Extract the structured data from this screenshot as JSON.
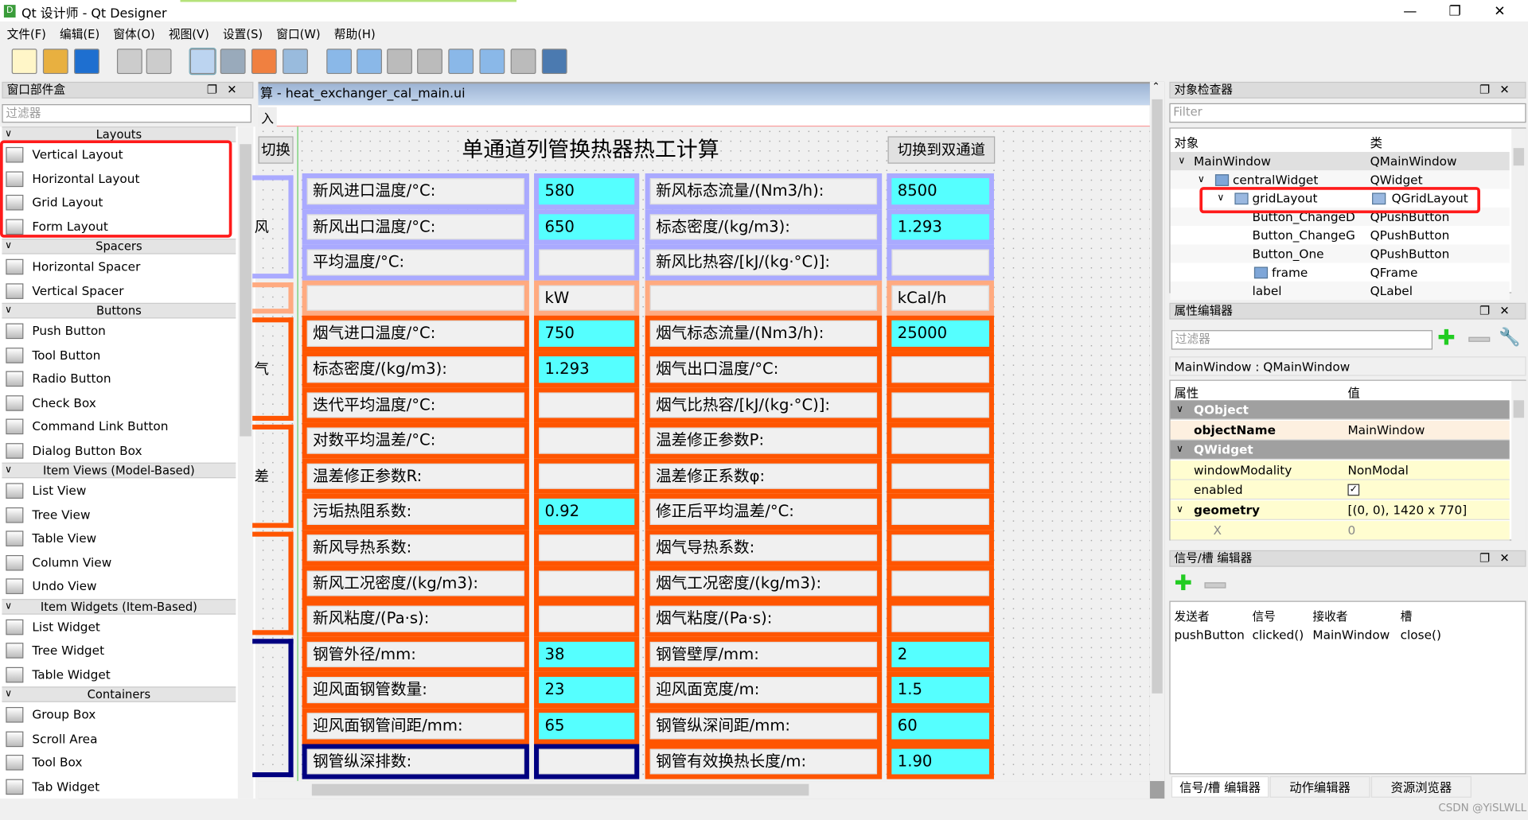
{
  "window": {
    "title": "Qt 设计师 - Qt Designer",
    "app_icon": "D",
    "controls": [
      "—",
      "❐",
      "✕"
    ]
  },
  "menu": [
    "文件(F)",
    "编辑(E)",
    "窗体(O)",
    "视图(V)",
    "设置(S)",
    "窗口(W)",
    "帮助(H)"
  ],
  "toolbar": [
    "new-file-icon",
    "open-folder-icon",
    "save-icon",
    "send-to-back-icon",
    "bring-to-front-icon",
    "edit-widgets-icon",
    "edit-signals-slots-icon",
    "edit-buddies-icon",
    "edit-tab-order-icon",
    "layout-horizontal-icon",
    "layout-vertical-icon",
    "layout-h-splitter-icon",
    "layout-v-splitter-icon",
    "layout-grid-icon",
    "layout-form-icon",
    "break-layout-icon",
    "adjust-size-icon"
  ],
  "widget_box": {
    "title": "窗口部件盒",
    "filter_placeholder": "过滤器",
    "sections": [
      {
        "label": "Layouts",
        "items": [
          "Vertical Layout",
          "Horizontal Layout",
          "Grid Layout",
          "Form Layout"
        ]
      },
      {
        "label": "Spacers",
        "items": [
          "Horizontal Spacer",
          "Vertical Spacer"
        ]
      },
      {
        "label": "Buttons",
        "items": [
          "Push Button",
          "Tool Button",
          "Radio Button",
          "Check Box",
          "Command Link Button",
          "Dialog Button Box"
        ]
      },
      {
        "label": "Item Views (Model-Based)",
        "items": [
          "List View",
          "Tree View",
          "Table View",
          "Column View",
          "Undo View"
        ]
      },
      {
        "label": "Item Widgets (Item-Based)",
        "items": [
          "List Widget",
          "Tree Widget",
          "Table Widget"
        ]
      },
      {
        "label": "Containers",
        "items": [
          "Group Box",
          "Scroll Area",
          "Tool Box",
          "Tab Widget"
        ]
      }
    ]
  },
  "form_window": {
    "title": "算 - heat_exchanger_cal_main.ui",
    "menu_item": "入",
    "left_button": "切换",
    "heading": "单通道列管换热器热工计算",
    "switch_button": "切换到双通道",
    "group_labels": [
      "风",
      "气",
      "差"
    ],
    "colors": {
      "air": "#aaaaff",
      "unit": "#ffaa80",
      "flue": "#ff5500",
      "tube": "#000080",
      "value": "#55ffff"
    },
    "rows": [
      {
        "l1": "新风进口温度/°C:",
        "v1": "580",
        "l2": "新风标态流量/(Nm3/h):",
        "v2": "8500"
      },
      {
        "l1": "新风出口温度/°C:",
        "v1": "650",
        "l2": "标态密度/(kg/m3):",
        "v2": "1.293"
      },
      {
        "l1": "平均温度/°C:",
        "v1": "",
        "l2": "新风比热容/[kJ/(kg·°C)]:",
        "v2": ""
      },
      {
        "l1": "",
        "v1": "kW",
        "l2": "",
        "v2": "kCal/h"
      },
      {
        "l1": "烟气进口温度/°C:",
        "v1": "750",
        "l2": "烟气标态流量/(Nm3/h):",
        "v2": "25000"
      },
      {
        "l1": "标态密度/(kg/m3):",
        "v1": "1.293",
        "l2": "烟气出口温度/°C:",
        "v2": ""
      },
      {
        "l1": "迭代平均温度/°C:",
        "v1": "",
        "l2": "烟气比热容/[kJ/(kg·°C)]:",
        "v2": ""
      },
      {
        "l1": "对数平均温差/°C:",
        "v1": "",
        "l2": "温差修正参数P:",
        "v2": ""
      },
      {
        "l1": "温差修正参数R:",
        "v1": "",
        "l2": "温差修正系数φ:",
        "v2": ""
      },
      {
        "l1": "污垢热阻系数:",
        "v1": "0.92",
        "l2": "修正后平均温差/°C:",
        "v2": ""
      },
      {
        "l1": "新风导热系数:",
        "v1": "",
        "l2": "烟气导热系数:",
        "v2": ""
      },
      {
        "l1": "新风工况密度/(kg/m3):",
        "v1": "",
        "l2": "烟气工况密度/(kg/m3):",
        "v2": ""
      },
      {
        "l1": "新风粘度/(Pa·s):",
        "v1": "",
        "l2": "烟气粘度/(Pa·s):",
        "v2": ""
      },
      {
        "l1": "钢管外径/mm:",
        "v1": "38",
        "l2": "钢管壁厚/mm:",
        "v2": "2"
      },
      {
        "l1": "迎风面钢管数量:",
        "v1": "23",
        "l2": "迎风面宽度/m:",
        "v2": "1.5"
      },
      {
        "l1": "迎风面钢管间距/mm:",
        "v1": "65",
        "l2": "钢管纵深间距/mm:",
        "v2": "60"
      },
      {
        "l1": "钢管纵深排数:",
        "v1": "",
        "l2": "钢管有效换热长度/m:",
        "v2": "1.90"
      }
    ]
  },
  "object_inspector": {
    "title": "对象检查器",
    "filter_placeholder": "Filter",
    "col_object": "对象",
    "col_class": "类",
    "rows": [
      {
        "name": "MainWindow",
        "cls": "QMainWindow"
      },
      {
        "name": "centralWidget",
        "cls": "QWidget"
      },
      {
        "name": "gridLayout",
        "cls": "QGridLayout"
      },
      {
        "name": "Button_ChangeD",
        "cls": "QPushButton"
      },
      {
        "name": "Button_ChangeG",
        "cls": "QPushButton"
      },
      {
        "name": "Button_One",
        "cls": "QPushButton"
      },
      {
        "name": "frame",
        "cls": "QFrame"
      },
      {
        "name": "label",
        "cls": "QLabel"
      }
    ]
  },
  "property_editor": {
    "title": "属性编辑器",
    "filter_placeholder": "过滤器",
    "object_label": "MainWindow : QMainWindow",
    "col_property": "属性",
    "col_value": "值",
    "rows": [
      {
        "type": "group",
        "name": "QObject"
      },
      {
        "type": "prop",
        "name": "objectName",
        "value": "MainWindow",
        "bold": true
      },
      {
        "type": "group",
        "name": "QWidget"
      },
      {
        "type": "prop",
        "name": "windowModality",
        "value": "NonModal"
      },
      {
        "type": "prop",
        "name": "enabled",
        "value": "",
        "checked": true
      },
      {
        "type": "prop",
        "name": "geometry",
        "value": "[(0, 0), 1420 x 770]",
        "bold": true,
        "expanded": true
      },
      {
        "type": "sub",
        "name": "X",
        "value": "0"
      }
    ]
  },
  "signal_slot_editor": {
    "title": "信号/槽 编辑器",
    "columns": [
      "发送者",
      "信号",
      "接收者",
      "槽"
    ],
    "rows": [
      [
        "pushButton",
        "clicked()",
        "MainWindow",
        "close()"
      ]
    ]
  },
  "bottom_tabs": [
    "信号/槽 编辑器",
    "动作编辑器",
    "资源浏览器"
  ],
  "watermark": "CSDN @YiSLWLL"
}
